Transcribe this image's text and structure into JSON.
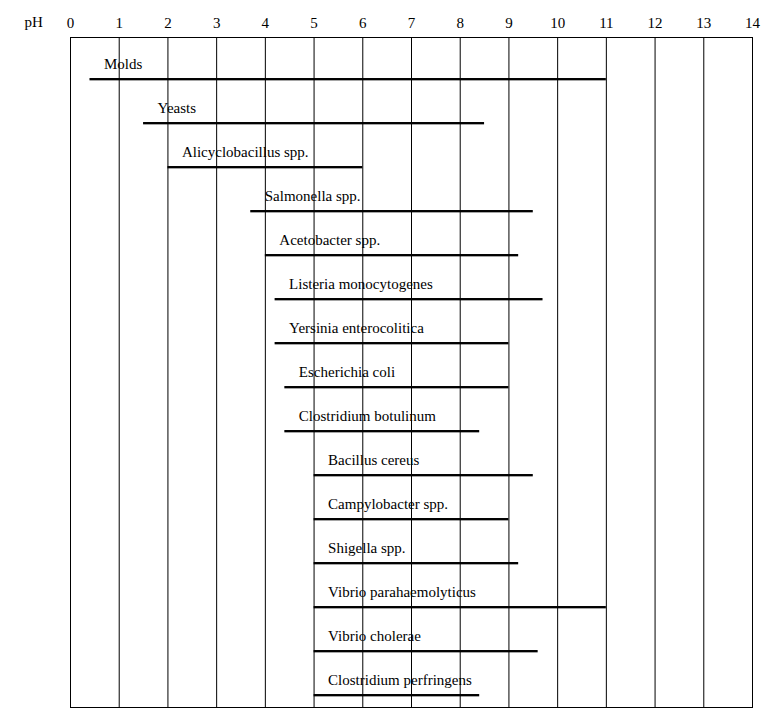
{
  "chart_data": {
    "type": "bar",
    "orientation": "horizontal",
    "xlabel": "pH",
    "categories": [
      "Molds",
      "Yeasts",
      "Alicyclobacillus spp.",
      "Salmonella spp.",
      "Acetobacter spp.",
      "Listeria monocytogenes",
      "Yersinia enterocolitica",
      "Escherichia coli",
      "Clostridium botulinum",
      "Bacillus cereus",
      "Campylobacter spp.",
      "Shigella spp.",
      "Vibrio parahaemolyticus",
      "Vibrio cholerae",
      "Clostridium perfringens"
    ],
    "values": [
      [
        0.4,
        11
      ],
      [
        1.5,
        8.5
      ],
      [
        2,
        6
      ],
      [
        3.7,
        9.5
      ],
      [
        4,
        9.2
      ],
      [
        4.2,
        9.7
      ],
      [
        4.2,
        9
      ],
      [
        4.4,
        9
      ],
      [
        4.4,
        8.4
      ],
      [
        5,
        9.5
      ],
      [
        5,
        9
      ],
      [
        5,
        9.2
      ],
      [
        5,
        11
      ],
      [
        5,
        9.6
      ],
      [
        5,
        8.4
      ]
    ],
    "color": "#000000",
    "xlim": [
      0,
      14
    ],
    "xticks": [
      0,
      1,
      2,
      3,
      4,
      5,
      6,
      7,
      8,
      9,
      10,
      11,
      12,
      13,
      14
    ],
    "grid": true,
    "tick_labels": "x"
  }
}
